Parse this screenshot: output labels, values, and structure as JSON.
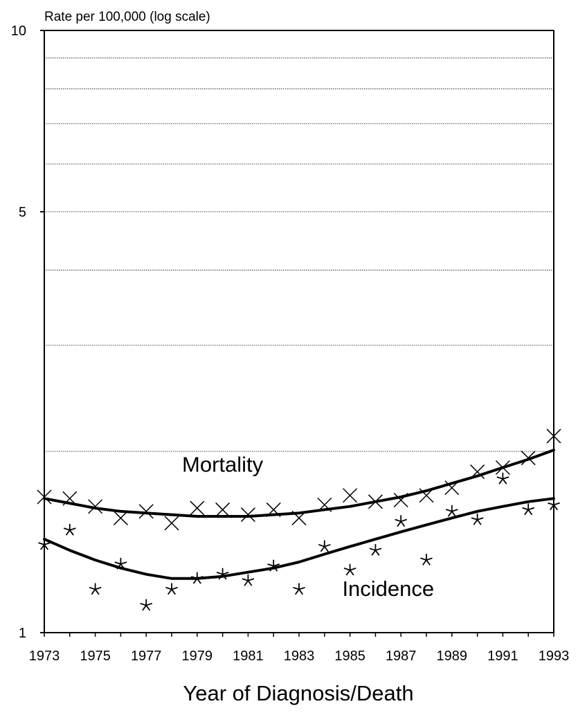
{
  "chart_data": {
    "type": "scatter",
    "title": "",
    "ylabel": "Rate per 100,000 (log scale)",
    "xlabel": "Year of Diagnosis/Death",
    "yscale": "log",
    "ylim": [
      1,
      10
    ],
    "xlim": [
      1973,
      1993
    ],
    "ytick_labels": [
      "1",
      "5",
      "10"
    ],
    "xtick_labels": [
      "1973",
      "1975",
      "1977",
      "1979",
      "1981",
      "1983",
      "1985",
      "1987",
      "1989",
      "1991",
      "1993"
    ],
    "grid": "horizontal dotted lines at 2,3,4,6,7,8,9",
    "legend": "none",
    "annotations": [
      {
        "text": "Mortality",
        "x": 1980,
        "y": 1.85
      },
      {
        "text": "Incidence",
        "x": 1986.5,
        "y": 1.15
      }
    ],
    "series": [
      {
        "name": "Mortality",
        "marker": "x",
        "x": [
          1973,
          1974,
          1975,
          1976,
          1977,
          1978,
          1979,
          1980,
          1981,
          1982,
          1983,
          1984,
          1985,
          1986,
          1987,
          1988,
          1989,
          1990,
          1991,
          1992,
          1993
        ],
        "y": [
          1.68,
          1.67,
          1.62,
          1.55,
          1.59,
          1.52,
          1.61,
          1.6,
          1.57,
          1.6,
          1.55,
          1.63,
          1.69,
          1.65,
          1.66,
          1.69,
          1.74,
          1.85,
          1.88,
          1.95,
          2.12
        ],
        "fit": [
          1.67,
          1.64,
          1.61,
          1.59,
          1.58,
          1.57,
          1.56,
          1.56,
          1.56,
          1.57,
          1.58,
          1.6,
          1.62,
          1.65,
          1.68,
          1.72,
          1.77,
          1.82,
          1.88,
          1.94,
          2.01
        ]
      },
      {
        "name": "Incidence",
        "marker": "*",
        "x": [
          1973,
          1974,
          1975,
          1976,
          1977,
          1978,
          1979,
          1980,
          1981,
          1982,
          1983,
          1984,
          1985,
          1986,
          1987,
          1988,
          1989,
          1990,
          1991,
          1992,
          1993
        ],
        "y": [
          1.4,
          1.48,
          1.18,
          1.3,
          1.11,
          1.18,
          1.23,
          1.25,
          1.22,
          1.29,
          1.18,
          1.39,
          1.27,
          1.37,
          1.53,
          1.32,
          1.59,
          1.54,
          1.8,
          1.6,
          1.63
        ],
        "fit": [
          1.43,
          1.37,
          1.32,
          1.28,
          1.25,
          1.23,
          1.23,
          1.24,
          1.26,
          1.28,
          1.31,
          1.35,
          1.39,
          1.43,
          1.47,
          1.51,
          1.55,
          1.59,
          1.62,
          1.65,
          1.67
        ]
      }
    ]
  }
}
